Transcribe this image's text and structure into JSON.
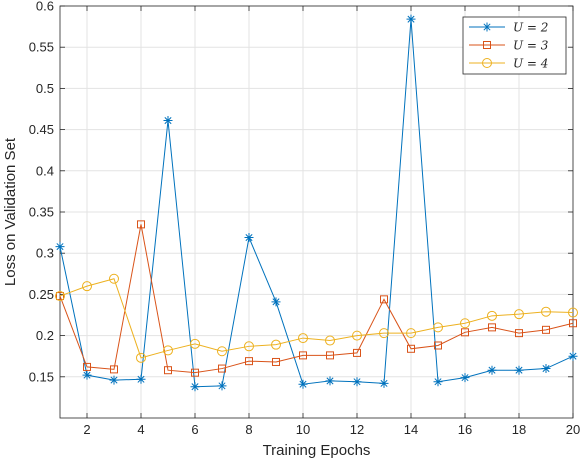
{
  "chart_data": {
    "type": "line",
    "xlabel": "Training Epochs",
    "ylabel": "Loss on Validation Set",
    "xlim": [
      1,
      20
    ],
    "ylim": [
      0.1,
      0.6
    ],
    "x_ticks": [
      2,
      4,
      6,
      8,
      10,
      12,
      14,
      16,
      18,
      20
    ],
    "x_tick_labels": [
      "2",
      "4",
      "6",
      "8",
      "10",
      "12",
      "14",
      "16",
      "18",
      "20"
    ],
    "y_ticks": [
      0.15,
      0.2,
      0.25,
      0.3,
      0.35,
      0.4,
      0.45,
      0.5,
      0.55,
      0.6
    ],
    "y_tick_labels": [
      "0.15",
      "0.2",
      "0.25",
      "0.3",
      "0.35",
      "0.4",
      "0.45",
      "0.5",
      "0.55",
      "0.6"
    ],
    "grid": true,
    "legend_position": "top-right",
    "x": [
      1,
      2,
      3,
      4,
      5,
      6,
      7,
      8,
      9,
      10,
      11,
      12,
      13,
      14,
      15,
      16,
      17,
      18,
      19,
      20
    ],
    "series": [
      {
        "name": "U = 2",
        "color": "#0072BD",
        "marker": "asterisk",
        "values": [
          0.308,
          0.152,
          0.146,
          0.147,
          0.461,
          0.138,
          0.139,
          0.319,
          0.241,
          0.141,
          0.145,
          0.144,
          0.142,
          0.584,
          0.144,
          0.149,
          0.158,
          0.158,
          0.16,
          0.175
        ]
      },
      {
        "name": "U = 3",
        "color": "#D95319",
        "marker": "square",
        "values": [
          0.248,
          0.162,
          0.159,
          0.335,
          0.158,
          0.155,
          0.16,
          0.169,
          0.168,
          0.176,
          0.176,
          0.179,
          0.244,
          0.184,
          0.188,
          0.204,
          0.21,
          0.203,
          0.207,
          0.215
        ]
      },
      {
        "name": "U = 4",
        "color": "#EDB120",
        "marker": "circle",
        "values": [
          0.248,
          0.26,
          0.269,
          0.173,
          0.182,
          0.19,
          0.181,
          0.187,
          0.189,
          0.197,
          0.194,
          0.2,
          0.203,
          0.203,
          0.21,
          0.215,
          0.224,
          0.226,
          0.229,
          0.228
        ]
      }
    ]
  }
}
